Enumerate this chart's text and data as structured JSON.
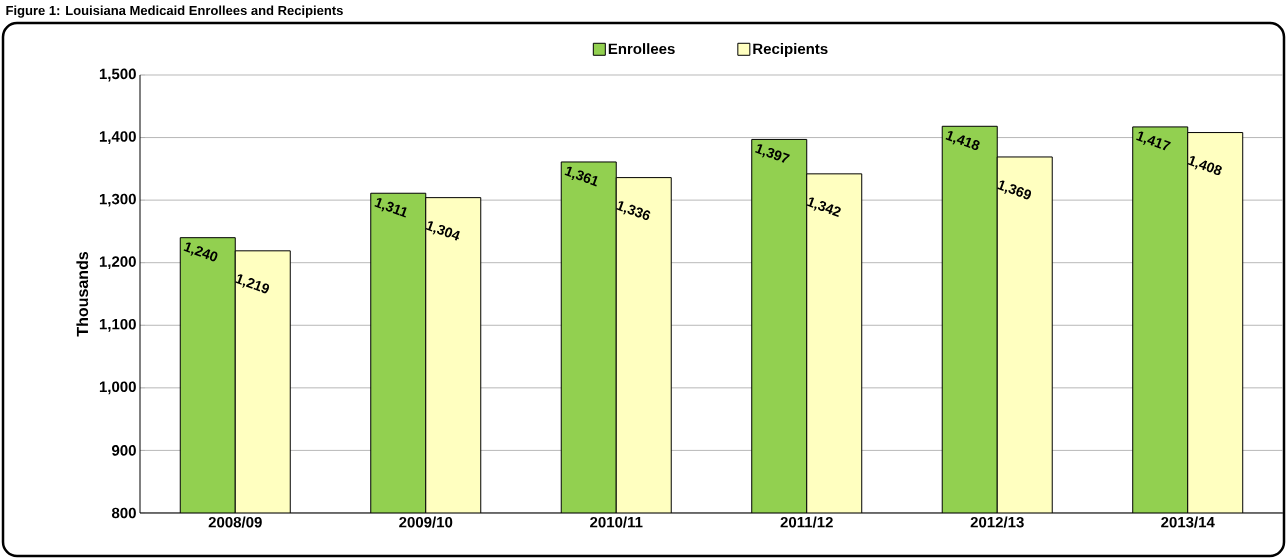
{
  "chart_data": {
    "type": "bar",
    "title": "Figure 1: Louisiana Medicaid Enrollees and Recipients",
    "ylabel": "Thousands",
    "categories": [
      "2008/09",
      "2009/10",
      "2010/11",
      "2011/12",
      "2012/13",
      "2013/14"
    ],
    "series": [
      {
        "name": "Enrollees",
        "color": "#92d050",
        "values": [
          1240,
          1311,
          1361,
          1397,
          1418,
          1417
        ],
        "value_labels": [
          "1,240",
          "1,311",
          "1,361",
          "1,397",
          "1,418",
          "1,417"
        ]
      },
      {
        "name": "Recipients",
        "color": "#ffffc0",
        "values": [
          1219,
          1304,
          1336,
          1342,
          1369,
          1408
        ],
        "value_labels": [
          "1,219",
          "1,304",
          "1,336",
          "1,342",
          "1,369",
          "1,408"
        ]
      }
    ],
    "ylim": [
      800,
      1500
    ],
    "yticks": [
      {
        "value": 800,
        "label": "800"
      },
      {
        "value": 900,
        "label": "900"
      },
      {
        "value": 1000,
        "label": "1,000"
      },
      {
        "value": 1100,
        "label": "1,100"
      },
      {
        "value": 1200,
        "label": "1,200"
      },
      {
        "value": 1300,
        "label": "1,300"
      },
      {
        "value": 1400,
        "label": "1,400"
      },
      {
        "value": 1500,
        "label": "1,500"
      }
    ],
    "grid": "y",
    "legend": "top"
  }
}
